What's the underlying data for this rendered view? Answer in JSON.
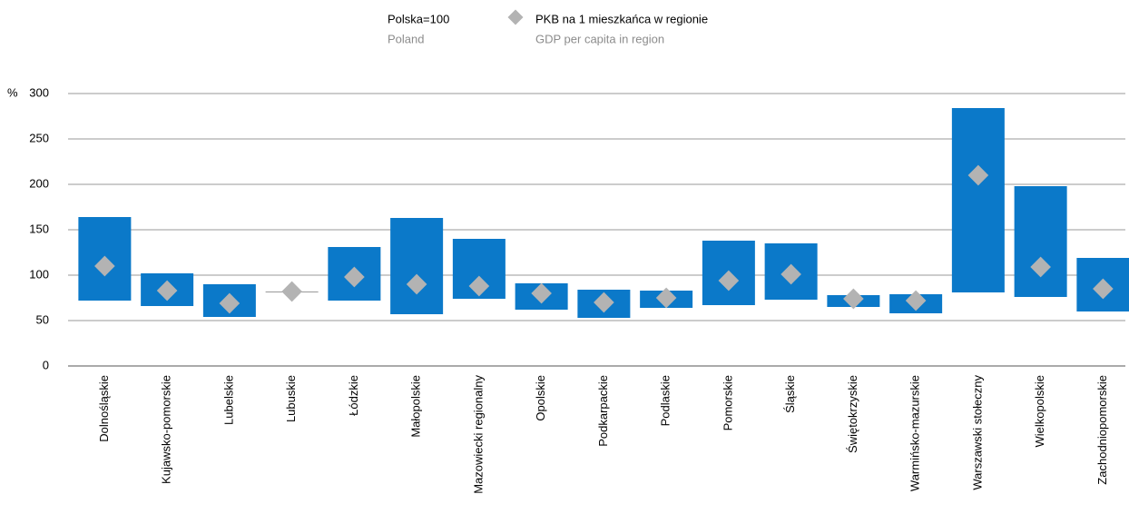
{
  "chart_data": {
    "type": "range",
    "legend": [
      {
        "name": "Polska=100",
        "subtitle": "Poland"
      },
      {
        "name": "PKB na 1 mieszkańca w regionie",
        "subtitle": "GDP per capita in region"
      }
    ],
    "y_unit": "%",
    "categories": [
      "Dolnośląskie",
      "Kujawsko-pomorskie",
      "Lubelskie",
      "Lubuskie",
      "Łódzkie",
      "Małopolskie",
      "Mazowiecki regionalny",
      "Opolskie",
      "Podkarpackie",
      "Podlaskie",
      "Pomorskie",
      "Śląskie",
      "Świętokrzyskie",
      "Warmińsko-mazurskie",
      "Warszawski stołeczny",
      "Wielkopolskie",
      "Zachodniopomorskie"
    ],
    "high": [
      164,
      102,
      90,
      82,
      131,
      163,
      140,
      91,
      84,
      83,
      138,
      135,
      78,
      79,
      284,
      198,
      119
    ],
    "low": [
      72,
      66,
      54,
      82,
      72,
      57,
      74,
      62,
      53,
      64,
      67,
      73,
      65,
      58,
      81,
      76,
      60
    ],
    "values": [
      110,
      83,
      69,
      82,
      98,
      90,
      88,
      80,
      70,
      75,
      94,
      101,
      74,
      72,
      210,
      109,
      85
    ],
    "bar_color": "#0b79c9",
    "marker_color": "#b3b3b3",
    "ylim": [
      0,
      300
    ],
    "yticks": [
      0,
      50,
      100,
      150,
      200,
      250,
      300
    ],
    "grid": true
  }
}
